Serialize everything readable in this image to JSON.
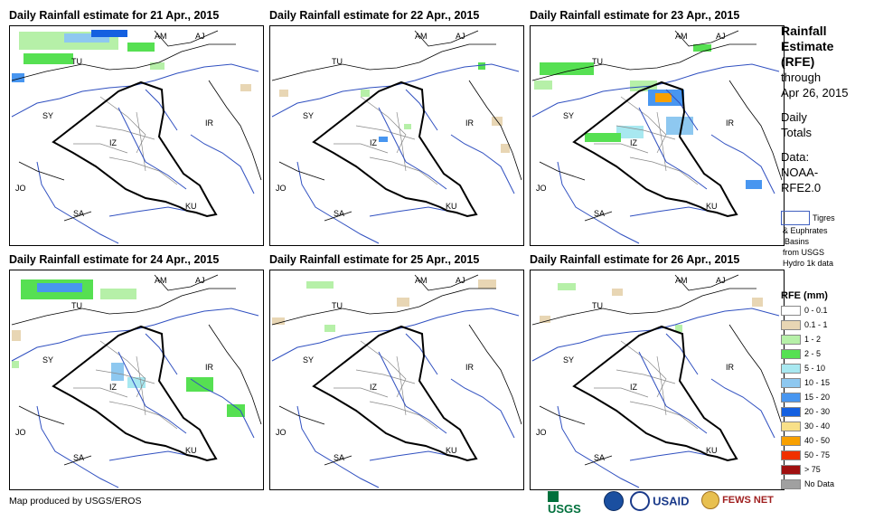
{
  "panels": [
    {
      "title": "Daily Rainfall estimate for 21 Apr., 2015"
    },
    {
      "title": "Daily Rainfall estimate for 22 Apr., 2015"
    },
    {
      "title": "Daily Rainfall estimate for 23 Apr., 2015"
    },
    {
      "title": "Daily Rainfall estimate for 24 Apr., 2015"
    },
    {
      "title": "Daily Rainfall estimate for 25 Apr., 2015"
    },
    {
      "title": "Daily Rainfall estimate for 26 Apr., 2015"
    }
  ],
  "map_labels": {
    "am": "AM",
    "aj": "AJ",
    "tu": "TU",
    "sy": "SY",
    "ir": "IR",
    "iz": "IZ",
    "jo": "JO",
    "sa": "SA",
    "ku": "KU"
  },
  "sidebar": {
    "title_line1": "Rainfall",
    "title_line2": "Estimate",
    "title_line3": "(RFE)",
    "through": "through",
    "date": "Apr 26, 2015",
    "daily": "Daily",
    "totals": "Totals",
    "data_label": "Data:",
    "source1": "NOAA-",
    "source2": "RFE2.0",
    "basin_line1": "Tigres",
    "basin_line2": "& Euphrates",
    "basin_line3": "Basins",
    "basin_line4": "from USGS",
    "basin_line5": "Hydro 1k data"
  },
  "legend": {
    "title": "RFE (mm)",
    "items": [
      {
        "label": "0 - 0.1",
        "color": "#ffffff"
      },
      {
        "label": "0.1 - 1",
        "color": "#e8d6b4"
      },
      {
        "label": "1 - 2",
        "color": "#b6f0a8"
      },
      {
        "label": "2 - 5",
        "color": "#56e052"
      },
      {
        "label": "5 - 10",
        "color": "#a8e8f0"
      },
      {
        "label": "10 - 15",
        "color": "#8ec8f0"
      },
      {
        "label": "15 - 20",
        "color": "#4896f0"
      },
      {
        "label": "20 - 30",
        "color": "#1460e0"
      },
      {
        "label": "30 - 40",
        "color": "#f8e088"
      },
      {
        "label": "40 - 50",
        "color": "#f8a000"
      },
      {
        "label": "50 - 75",
        "color": "#f03000"
      },
      {
        "label": "> 75",
        "color": "#a01010"
      },
      {
        "label": "No Data",
        "color": "#a0a0a0"
      }
    ]
  },
  "footer": {
    "credit": "Map produced by USGS/EROS"
  },
  "logos": {
    "usgs": "USGS",
    "noaa": "NOAA",
    "usaid": "USAID",
    "fews": "FEWS NET"
  }
}
